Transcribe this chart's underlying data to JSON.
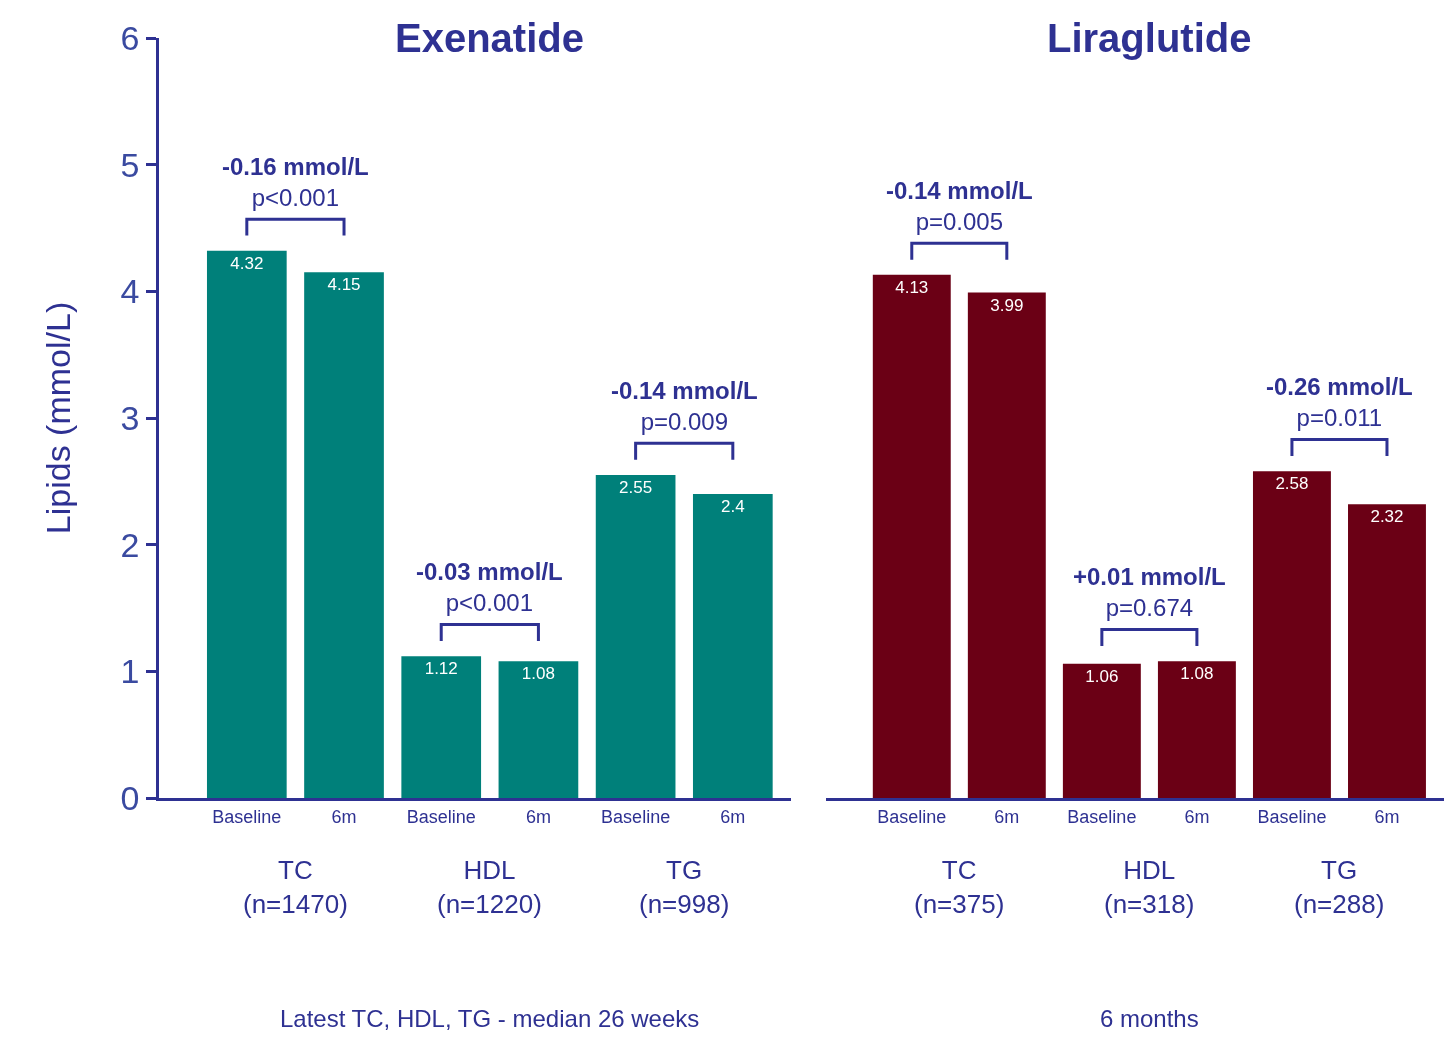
{
  "chart_data": [
    {
      "type": "bar",
      "title": "Exenatide",
      "ylabel": "Lipids (mmol/L)",
      "categories": [
        "Baseline",
        "6m",
        "Baseline",
        "6m",
        "Baseline",
        "6m"
      ],
      "values": [
        4.32,
        4.15,
        1.12,
        1.08,
        2.55,
        2.4
      ],
      "color": "#00807a",
      "ylim": [
        0,
        6
      ],
      "yticks": [
        0,
        1,
        2,
        3,
        4,
        5,
        6
      ],
      "data_labels": true,
      "annotations": [
        "-0.16 mmol/L\np<0.001",
        "-0.03 mmol/L\np<0.001",
        "-0.14 mmol/L\np=0.009",
        "TC\n(n=1470)",
        "HDL\n(n=1220)",
        "TG\n(n=998)",
        "Latest TC, HDL, TG - median 26 weeks"
      ]
    },
    {
      "type": "bar",
      "title": "Liraglutide",
      "categories": [
        "Baseline",
        "6m",
        "Baseline",
        "6m",
        "Baseline",
        "6m"
      ],
      "values": [
        4.13,
        3.99,
        1.06,
        1.08,
        2.58,
        2.32
      ],
      "color": "#6b0015",
      "ylim": [
        0,
        6
      ],
      "tick_labels": "x",
      "data_labels": true,
      "annotations": [
        "-0.14 mmol/L\np=0.005",
        "+0.01 mmol/L\np=0.674",
        "-0.26 mmol/L\np=0.011",
        "TC\n(n=375)",
        "HDL\n(n=318)",
        "TG\n(n=288)",
        "6 months"
      ]
    }
  ]
}
